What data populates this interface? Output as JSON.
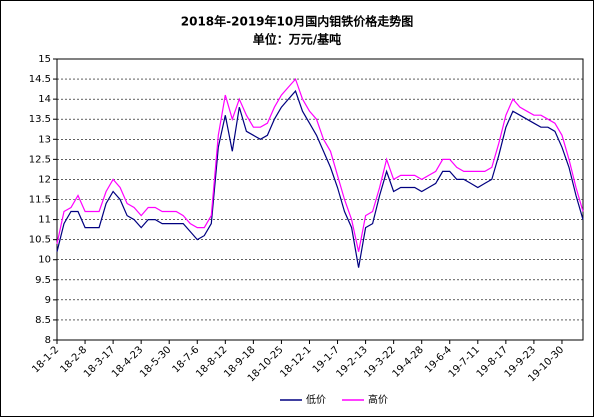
{
  "chart_data": {
    "type": "line",
    "title": "2018年-2019年10月国内钼铁价格走势图",
    "subtitle": "单位：万元/基吨",
    "categories": [
      "18-1-2",
      null,
      null,
      null,
      "18-2-8",
      null,
      null,
      null,
      "18-3-17",
      null,
      null,
      null,
      "18-4-23",
      null,
      null,
      null,
      "18-5-30",
      null,
      null,
      null,
      "18-7-6",
      null,
      null,
      null,
      "18-8-12",
      null,
      null,
      null,
      "18-9-18",
      null,
      null,
      null,
      "18-10-25",
      null,
      null,
      null,
      "18-12-1",
      null,
      null,
      null,
      "19-1-7",
      null,
      null,
      null,
      "19-2-13",
      null,
      null,
      null,
      "19-3-22",
      null,
      null,
      null,
      "19-4-28",
      null,
      null,
      null,
      "19-6-4",
      null,
      null,
      null,
      "19-7-11",
      null,
      null,
      null,
      "19-8-17",
      null,
      null,
      null,
      "19-9-23",
      null,
      null,
      null,
      "19-10-30",
      null,
      null,
      null
    ],
    "series": [
      {
        "name": "低价",
        "color": "#000080",
        "values": [
          10.2,
          10.9,
          11.2,
          11.2,
          10.8,
          10.8,
          10.8,
          11.4,
          11.7,
          11.5,
          11.1,
          11.0,
          10.8,
          11.0,
          11.0,
          10.9,
          10.9,
          10.9,
          10.9,
          10.7,
          10.5,
          10.6,
          10.9,
          12.8,
          13.6,
          12.7,
          13.8,
          13.2,
          13.1,
          13.0,
          13.1,
          13.5,
          13.8,
          14.0,
          14.2,
          13.7,
          13.4,
          13.1,
          12.7,
          12.3,
          11.8,
          11.2,
          10.8,
          9.8,
          10.8,
          10.9,
          11.6,
          12.2,
          11.7,
          11.8,
          11.8,
          11.8,
          11.7,
          11.8,
          11.9,
          12.2,
          12.2,
          12.0,
          12.0,
          11.9,
          11.8,
          11.9,
          12.0,
          12.6,
          13.3,
          13.7,
          13.6,
          13.5,
          13.4,
          13.3,
          13.3,
          13.2,
          12.8,
          12.3,
          11.6,
          11.0
        ]
      },
      {
        "name": "高价",
        "color": "#ff00ff",
        "values": [
          10.4,
          11.2,
          11.3,
          11.6,
          11.2,
          11.2,
          11.2,
          11.7,
          12.0,
          11.8,
          11.4,
          11.3,
          11.1,
          11.3,
          11.3,
          11.2,
          11.2,
          11.2,
          11.1,
          10.9,
          10.8,
          10.8,
          11.1,
          13.1,
          14.1,
          13.5,
          14.0,
          13.6,
          13.3,
          13.3,
          13.4,
          13.8,
          14.1,
          14.3,
          14.5,
          14.0,
          13.7,
          13.5,
          13.0,
          12.7,
          12.1,
          11.5,
          11.0,
          10.2,
          11.1,
          11.2,
          11.8,
          12.5,
          12.0,
          12.1,
          12.1,
          12.1,
          12.0,
          12.1,
          12.2,
          12.5,
          12.5,
          12.3,
          12.2,
          12.2,
          12.2,
          12.2,
          12.3,
          12.9,
          13.6,
          14.0,
          13.8,
          13.7,
          13.6,
          13.6,
          13.5,
          13.4,
          13.1,
          12.5,
          11.8,
          11.2
        ]
      }
    ],
    "ylim": [
      8,
      15
    ],
    "yticks": [
      8,
      8.5,
      9,
      9.5,
      10,
      10.5,
      11,
      11.5,
      12,
      12.5,
      13,
      13.5,
      14,
      14.5,
      15
    ],
    "grid": true,
    "legend": "bottom"
  }
}
